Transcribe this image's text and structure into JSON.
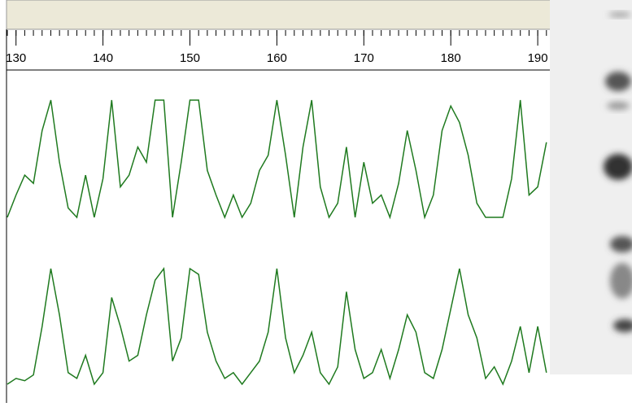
{
  "chart_data": [
    {
      "type": "line",
      "x": [
        129,
        130,
        131,
        132,
        133,
        134,
        135,
        136,
        137,
        138,
        139,
        140,
        141,
        142,
        143,
        144,
        145,
        146,
        147,
        148,
        149,
        150,
        151,
        152,
        153,
        154,
        155,
        156,
        157,
        158,
        159,
        160,
        161,
        162,
        163,
        164,
        165,
        166,
        167,
        168,
        169,
        170,
        171,
        172,
        173,
        174,
        175,
        176,
        177,
        178,
        179,
        180,
        181,
        182,
        183,
        184,
        185,
        186,
        187,
        188,
        189,
        190,
        191
      ],
      "series": [
        {
          "color": "#1f7a1f",
          "values": [
            0,
            19,
            36,
            29,
            74,
            100,
            47,
            8,
            0,
            36,
            0,
            33,
            100,
            26,
            36,
            60,
            47,
            100,
            100,
            0,
            47,
            100,
            100,
            40,
            19,
            0,
            19,
            0,
            12,
            40,
            53,
            100,
            53,
            0,
            60,
            100,
            26,
            0,
            12,
            60,
            0,
            47,
            12,
            19,
            0,
            29,
            74,
            40,
            0,
            19,
            74,
            95,
            81,
            53,
            12,
            0,
            0,
            0,
            33,
            100,
            19,
            26,
            64
          ]
        }
      ],
      "xlim": [
        129,
        191.3
      ],
      "xticks": [
        130,
        140,
        150,
        160,
        170,
        180,
        190
      ],
      "ylim": [
        0,
        100
      ]
    },
    {
      "type": "line",
      "x": [
        129,
        130,
        131,
        132,
        133,
        134,
        135,
        136,
        137,
        138,
        139,
        140,
        141,
        142,
        143,
        144,
        145,
        146,
        147,
        148,
        149,
        150,
        151,
        152,
        153,
        154,
        155,
        156,
        157,
        158,
        159,
        160,
        161,
        162,
        163,
        164,
        165,
        166,
        167,
        168,
        169,
        170,
        171,
        172,
        173,
        174,
        175,
        176,
        177,
        178,
        179,
        180,
        181,
        182,
        183,
        184,
        185,
        186,
        187,
        188,
        189,
        190,
        191
      ],
      "series": [
        {
          "color": "#1f7a1f",
          "values": [
            0,
            5,
            3,
            8,
            50,
            100,
            60,
            10,
            5,
            25,
            0,
            10,
            75,
            50,
            20,
            25,
            60,
            90,
            100,
            20,
            40,
            100,
            95,
            45,
            20,
            5,
            10,
            0,
            10,
            20,
            45,
            100,
            40,
            10,
            25,
            45,
            10,
            0,
            15,
            80,
            30,
            5,
            10,
            30,
            5,
            30,
            60,
            45,
            10,
            5,
            30,
            65,
            100,
            60,
            40,
            5,
            15,
            0,
            20,
            50,
            10,
            50,
            10
          ]
        }
      ],
      "xlim": [
        129,
        191.3
      ],
      "ylim": [
        0,
        100
      ]
    }
  ]
}
